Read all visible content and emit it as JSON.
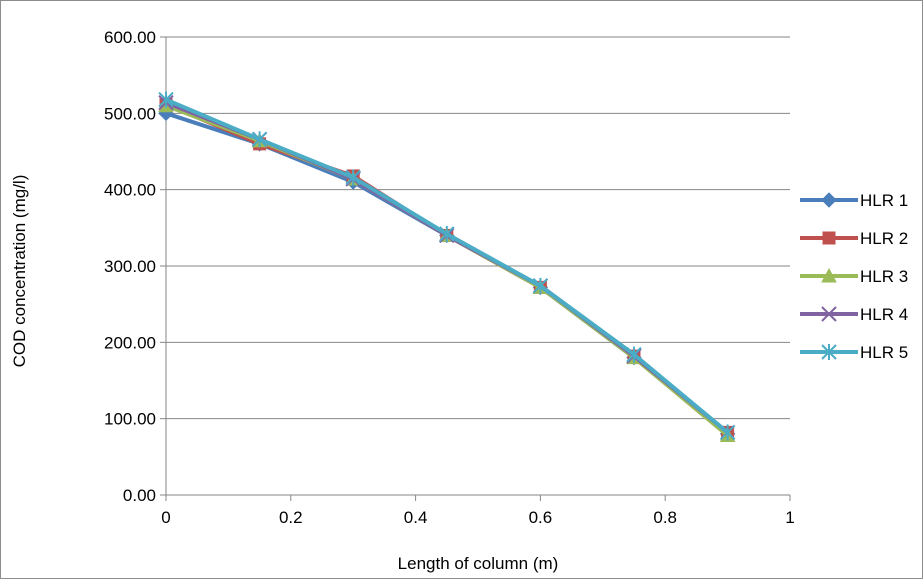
{
  "chart_data": {
    "type": "line",
    "xlabel": "Length of column (m)",
    "ylabel": "COD concentration (mg/l)",
    "xlim": [
      0,
      1
    ],
    "ylim": [
      0,
      600
    ],
    "x_ticks": [
      "0",
      "0.2",
      "0.4",
      "0.6",
      "0.8",
      "1"
    ],
    "y_ticks": [
      "0.00",
      "100.00",
      "200.00",
      "300.00",
      "400.00",
      "500.00",
      "600.00"
    ],
    "grid": "horizontal",
    "legend_position": "right",
    "x": [
      0,
      0.15,
      0.3,
      0.45,
      0.6,
      0.75,
      0.9
    ],
    "series": [
      {
        "name": "HLR 1",
        "color": "#4a7ebb",
        "marker": "diamond",
        "values": [
          500,
          460,
          410,
          340,
          272,
          180,
          80
        ]
      },
      {
        "name": "HLR 2",
        "color": "#c0504d",
        "marker": "square",
        "values": [
          512,
          460,
          418,
          340,
          272,
          182,
          82
        ]
      },
      {
        "name": "HLR 3",
        "color": "#9bbb59",
        "marker": "triangle",
        "values": [
          510,
          464,
          414,
          340,
          272,
          180,
          78
        ]
      },
      {
        "name": "HLR 4",
        "color": "#8064a2",
        "marker": "x",
        "values": [
          514,
          466,
          414,
          340,
          274,
          182,
          82
        ]
      },
      {
        "name": "HLR 5",
        "color": "#4bacc6",
        "marker": "star",
        "values": [
          518,
          466,
          416,
          342,
          274,
          184,
          82
        ]
      }
    ]
  }
}
